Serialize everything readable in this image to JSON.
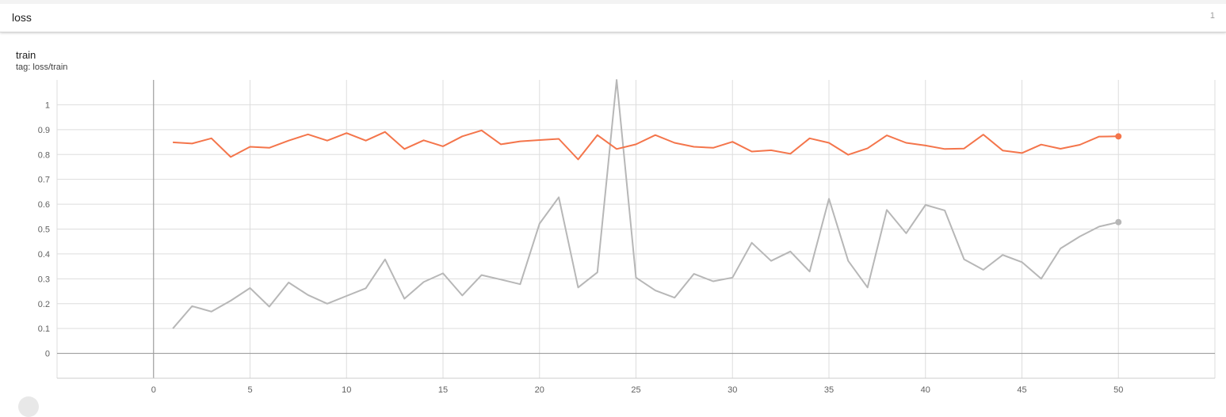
{
  "section": {
    "title": "loss",
    "count": "1"
  },
  "card": {
    "title": "train",
    "tag": "tag: loss/train"
  },
  "colors": {
    "orange": "#f4754b",
    "gray": "#b7b7b7",
    "grid": "#dddddd",
    "axis": "#9e9e9e"
  },
  "chart_data": {
    "type": "line",
    "title": "train",
    "subtitle": "tag: loss/train",
    "xlim": [
      -5,
      55
    ],
    "ylim": [
      -0.1,
      1.1
    ],
    "xticks": [
      0,
      5,
      10,
      15,
      20,
      25,
      30,
      35,
      40,
      45,
      50
    ],
    "yticks": [
      0,
      0.1,
      0.2,
      0.3,
      0.4,
      0.5,
      0.6,
      0.7,
      0.8,
      0.9,
      1
    ],
    "ytick_labels": [
      "0",
      "0.1",
      "0.2",
      "0.3",
      "0.4",
      "0.5",
      "0.6",
      "0.7",
      "0.8",
      "0.9",
      "1"
    ],
    "grid": true,
    "x": [
      1,
      2,
      3,
      4,
      5,
      6,
      7,
      8,
      9,
      10,
      11,
      12,
      13,
      14,
      15,
      16,
      17,
      18,
      19,
      20,
      21,
      22,
      23,
      24,
      25,
      26,
      27,
      28,
      29,
      30,
      31,
      32,
      33,
      34,
      35,
      36,
      37,
      38,
      39,
      40,
      41,
      42,
      43,
      44,
      45,
      46,
      47,
      48,
      49,
      50
    ],
    "series": [
      {
        "color": "#f4754b",
        "values": [
          0.849,
          0.844,
          0.865,
          0.79,
          0.831,
          0.827,
          0.856,
          0.881,
          0.856,
          0.886,
          0.856,
          0.891,
          0.822,
          0.857,
          0.833,
          0.873,
          0.897,
          0.841,
          0.853,
          0.858,
          0.863,
          0.78,
          0.878,
          0.822,
          0.841,
          0.878,
          0.847,
          0.831,
          0.827,
          0.851,
          0.812,
          0.817,
          0.803,
          0.865,
          0.847,
          0.799,
          0.825,
          0.877,
          0.847,
          0.836,
          0.822,
          0.824,
          0.88,
          0.816,
          0.806,
          0.84,
          0.823,
          0.839,
          0.872,
          0.873
        ]
      },
      {
        "color": "#b7b7b7",
        "values": [
          0.1,
          0.19,
          0.168,
          0.212,
          0.263,
          0.188,
          0.285,
          0.235,
          0.2,
          0.231,
          0.262,
          0.378,
          0.22,
          0.287,
          0.322,
          0.233,
          0.315,
          0.297,
          0.278,
          0.522,
          0.628,
          0.265,
          0.326,
          1.1,
          0.305,
          0.253,
          0.224,
          0.32,
          0.29,
          0.305,
          0.445,
          0.372,
          0.41,
          0.329,
          0.622,
          0.372,
          0.265,
          0.577,
          0.483,
          0.597,
          0.575,
          0.378,
          0.336,
          0.396,
          0.367,
          0.3,
          0.422,
          0.47,
          0.51,
          0.528
        ]
      }
    ]
  }
}
